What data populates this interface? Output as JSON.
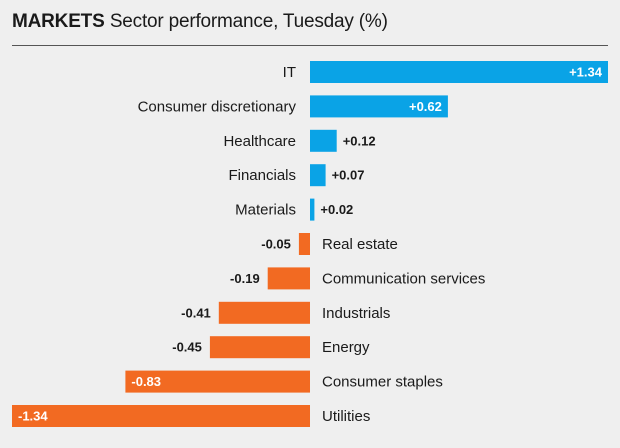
{
  "header": {
    "kicker": "MARKETS",
    "title": "Sector performance, Tuesday (%)"
  },
  "colors": {
    "positive": "#0aa3e6",
    "negative": "#f26a22",
    "rule": "#555555"
  },
  "chart_data": {
    "type": "bar",
    "orientation": "horizontal",
    "title": "Sector performance, Tuesday (%)",
    "xlim": [
      -1.34,
      1.34
    ],
    "grid": false,
    "categories": [
      "IT",
      "Consumer discretionary",
      "Healthcare",
      "Financials",
      "Materials",
      "Real estate",
      "Communication services",
      "Industrials",
      "Energy",
      "Consumer staples",
      "Utilities"
    ],
    "values": [
      1.34,
      0.62,
      0.12,
      0.07,
      0.02,
      -0.05,
      -0.19,
      -0.41,
      -0.45,
      -0.83,
      -1.34
    ],
    "value_labels": [
      "+1.34",
      "+0.62",
      "+0.12",
      "+0.07",
      "+0.02",
      "-0.05",
      "-0.19",
      "-0.41",
      "-0.45",
      "-0.83",
      "-1.34"
    ]
  }
}
